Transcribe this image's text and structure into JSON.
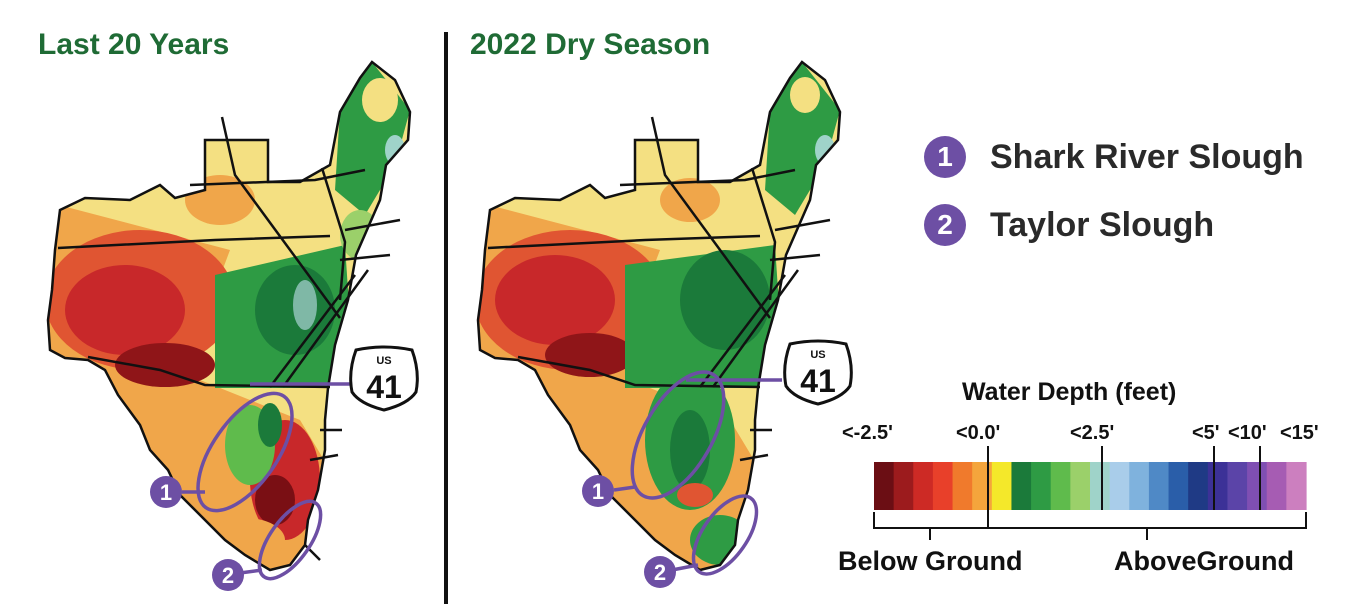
{
  "panels": {
    "left_title": "Last 20 Years",
    "right_title": "2022 Dry Season"
  },
  "highway": {
    "top": "US",
    "number": "41"
  },
  "markers": [
    {
      "number": "1",
      "name": "Shark River Slough"
    },
    {
      "number": "2",
      "name": "Taylor Slough"
    }
  ],
  "scale": {
    "title": "Water Depth (feet)",
    "ticks": [
      "<-2.5'",
      "<0.0'",
      "<2.5'",
      "<5'",
      "<10'",
      "<15'"
    ],
    "groups": [
      "Below Ground",
      "AboveGround"
    ],
    "colors": [
      "#6b0e14",
      "#9c1b1d",
      "#cd2a25",
      "#e8402a",
      "#f07a2c",
      "#f4a53c",
      "#f4e82a",
      "#1b7a3a",
      "#2e9b44",
      "#5fbb4c",
      "#9bd06a",
      "#9fd3c9",
      "#a9cdea",
      "#7fb2dd",
      "#4f89c6",
      "#2a5ea9",
      "#1f3a85",
      "#3c3197",
      "#5b44a8",
      "#7f4fb3",
      "#a65cb3",
      "#cc7fbf"
    ]
  },
  "colors": {
    "title_green": "#1f6b35",
    "marker_purple": "#6d4fa4"
  }
}
